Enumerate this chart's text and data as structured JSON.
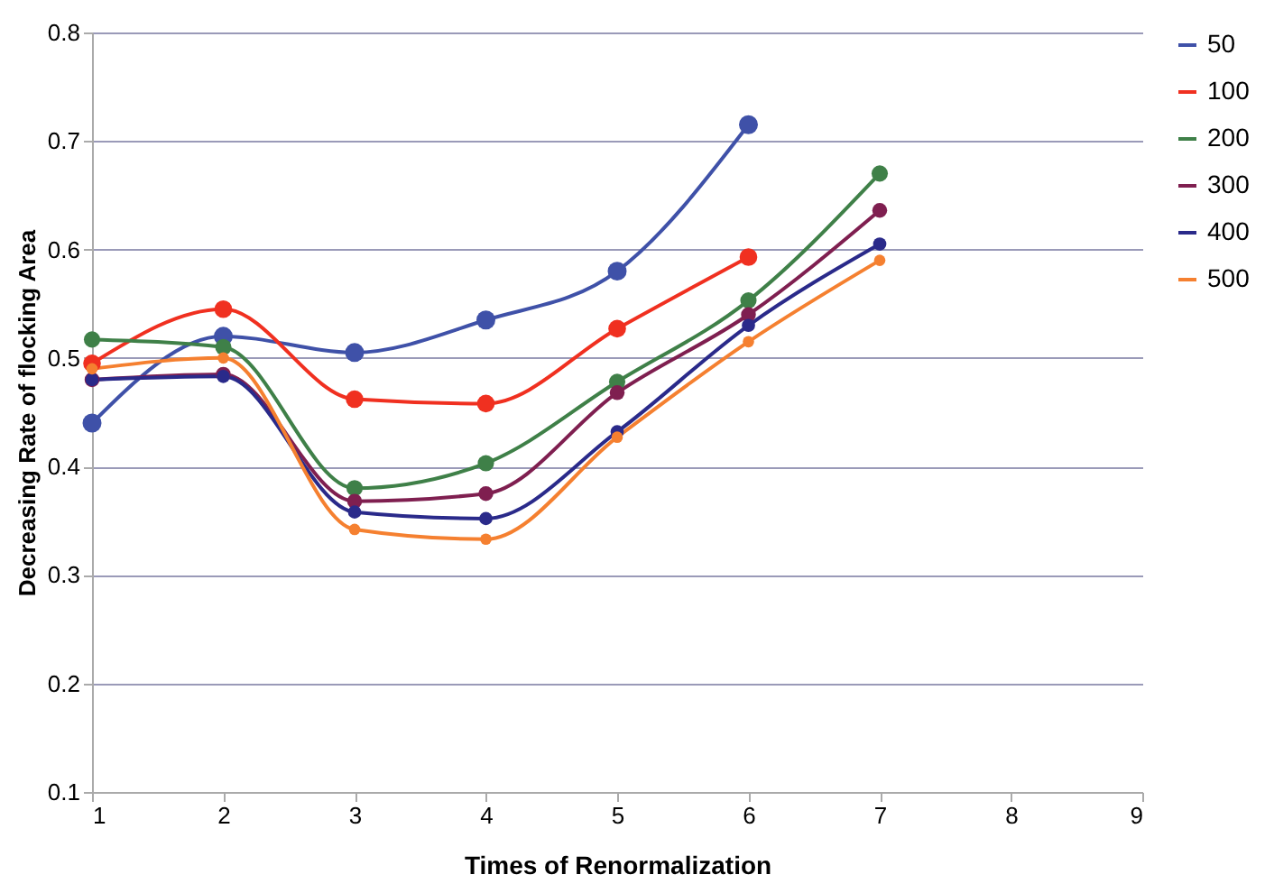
{
  "chart_data": {
    "type": "line",
    "xlabel": "Times of Renormalization",
    "ylabel": "Decreasing Rate of flocking Area",
    "xlim": [
      1,
      9
    ],
    "xticks": [
      1,
      2,
      3,
      4,
      5,
      6,
      7,
      8,
      9
    ],
    "ylim": [
      0.1,
      0.8
    ],
    "yticks": [
      0.1,
      0.2,
      0.3,
      0.4,
      0.5,
      0.6,
      0.7,
      0.8
    ],
    "grid": "y",
    "legend": "right",
    "marker": "circle",
    "line_style": "solid",
    "series": [
      {
        "name": "50",
        "color": "#3f51a8",
        "x": [
          1,
          2,
          3,
          4,
          5,
          6
        ],
        "values": [
          0.44,
          0.52,
          0.505,
          0.535,
          0.58,
          0.715
        ]
      },
      {
        "name": "100",
        "color": "#f03020",
        "x": [
          1,
          2,
          3,
          4,
          5,
          6
        ],
        "values": [
          0.495,
          0.545,
          0.462,
          0.458,
          0.527,
          0.593
        ]
      },
      {
        "name": "200",
        "color": "#3f8048",
        "x": [
          1,
          2,
          3,
          4,
          5,
          6,
          7
        ],
        "values": [
          0.517,
          0.51,
          0.38,
          0.403,
          0.478,
          0.553,
          0.67
        ]
      },
      {
        "name": "300",
        "color": "#7f1f50",
        "x": [
          1,
          2,
          3,
          4,
          5,
          6,
          7
        ],
        "values": [
          0.48,
          0.485,
          0.368,
          0.375,
          0.468,
          0.54,
          0.636
        ]
      },
      {
        "name": "400",
        "color": "#2a2a8a",
        "x": [
          1,
          2,
          3,
          4,
          5,
          6,
          7
        ],
        "values": [
          0.48,
          0.483,
          0.358,
          0.352,
          0.432,
          0.53,
          0.605
        ]
      },
      {
        "name": "500",
        "color": "#f58030",
        "x": [
          1,
          2,
          3,
          4,
          5,
          6,
          7
        ],
        "values": [
          0.49,
          0.5,
          0.342,
          0.333,
          0.427,
          0.515,
          0.59
        ]
      }
    ]
  }
}
